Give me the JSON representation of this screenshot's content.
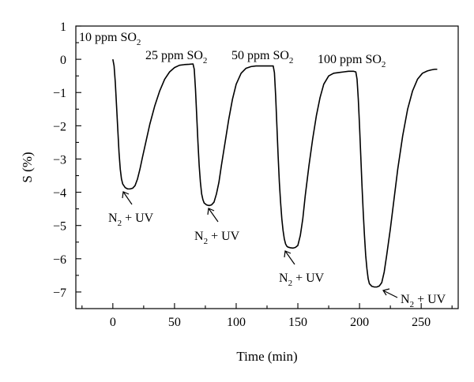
{
  "chart_data": {
    "type": "line",
    "title": "",
    "xlabel": "Time (min)",
    "ylabel": "S (%)",
    "xlim": [
      -30,
      280
    ],
    "ylim": [
      -7.5,
      1
    ],
    "x_ticks": [
      0,
      50,
      100,
      150,
      200,
      250
    ],
    "y_ticks": [
      1,
      0,
      -1,
      -2,
      -3,
      -4,
      -5,
      -6,
      -7
    ],
    "x_tick_labels": [
      "0",
      "50",
      "100",
      "150",
      "200",
      "250"
    ],
    "y_tick_labels": [
      "1",
      "0",
      "−1",
      "−2",
      "−3",
      "−4",
      "−5",
      "−6",
      "−7"
    ],
    "grid": false,
    "legend": "none",
    "series": [
      {
        "color": "#000000",
        "x": [
          0,
          1,
          2,
          3,
          4,
          5,
          6,
          7,
          8,
          10,
          12,
          14,
          16,
          18,
          20,
          22,
          24,
          27,
          30,
          34,
          38,
          42,
          46,
          50,
          54,
          58,
          62,
          65,
          66,
          67,
          68,
          69,
          70,
          71,
          72,
          73,
          74,
          76,
          78,
          80,
          82,
          84,
          86,
          88,
          91,
          94,
          97,
          100,
          104,
          108,
          112,
          116,
          120,
          124,
          128,
          130,
          131,
          132,
          133,
          134,
          135,
          136,
          137,
          138,
          139,
          140,
          141,
          142,
          144,
          146,
          148,
          150,
          152,
          154,
          156,
          159,
          162,
          165,
          168,
          171,
          175,
          179,
          183,
          187,
          191,
          195,
          197,
          198,
          199,
          200,
          201,
          202,
          203,
          204,
          205,
          206,
          207,
          208,
          210,
          212,
          214,
          216,
          218,
          220,
          222,
          225,
          228,
          231,
          235,
          239,
          243,
          247,
          251,
          255,
          258,
          261,
          263
        ],
        "y": [
          0.0,
          -0.2,
          -0.7,
          -1.4,
          -2.1,
          -2.8,
          -3.3,
          -3.6,
          -3.75,
          -3.86,
          -3.9,
          -3.9,
          -3.88,
          -3.8,
          -3.6,
          -3.3,
          -2.95,
          -2.45,
          -1.95,
          -1.4,
          -0.95,
          -0.6,
          -0.38,
          -0.25,
          -0.18,
          -0.16,
          -0.15,
          -0.14,
          -0.3,
          -0.9,
          -1.7,
          -2.5,
          -3.2,
          -3.7,
          -4.05,
          -4.22,
          -4.32,
          -4.38,
          -4.4,
          -4.38,
          -4.3,
          -4.05,
          -3.7,
          -3.2,
          -2.5,
          -1.8,
          -1.2,
          -0.75,
          -0.42,
          -0.27,
          -0.22,
          -0.2,
          -0.2,
          -0.2,
          -0.2,
          -0.2,
          -0.4,
          -1.1,
          -2.0,
          -2.9,
          -3.7,
          -4.3,
          -4.8,
          -5.15,
          -5.4,
          -5.55,
          -5.62,
          -5.65,
          -5.67,
          -5.68,
          -5.66,
          -5.6,
          -5.3,
          -4.8,
          -4.1,
          -3.2,
          -2.4,
          -1.7,
          -1.15,
          -0.75,
          -0.5,
          -0.42,
          -0.4,
          -0.38,
          -0.36,
          -0.36,
          -0.38,
          -0.6,
          -1.2,
          -2.0,
          -2.9,
          -3.8,
          -4.6,
          -5.3,
          -5.9,
          -6.3,
          -6.6,
          -6.75,
          -6.83,
          -6.85,
          -6.85,
          -6.82,
          -6.72,
          -6.4,
          -5.9,
          -5.1,
          -4.2,
          -3.3,
          -2.3,
          -1.5,
          -0.95,
          -0.6,
          -0.42,
          -0.35,
          -0.32,
          -0.3,
          -0.3
        ]
      }
    ],
    "annotations": {
      "conc_1_prefix": "10 ppm SO",
      "conc_1_sub": "2",
      "conc_2_prefix": "25 ppm SO",
      "conc_2_sub": "2",
      "conc_3_prefix": "50 ppm SO",
      "conc_3_sub": "2",
      "conc_4_prefix": "100 ppm SO",
      "conc_4_sub": "2",
      "uv_prefix": "N",
      "uv_sub": "2",
      "uv_suffix": " + UV"
    }
  }
}
